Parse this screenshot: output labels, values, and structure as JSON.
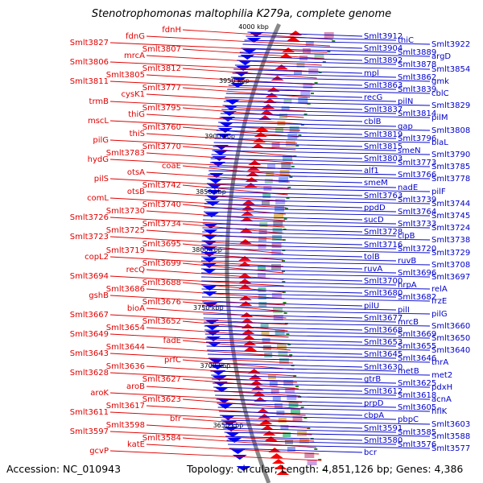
{
  "title": "Stenotrophomonas maltophilia K279a, complete genome",
  "footer": {
    "accession": "Accession: NC_010943",
    "summary": "Topology: circular; Length: 4,851,126 bp; Genes: 4,386"
  },
  "colors": {
    "left_label": "#e00000",
    "right_label": "#0000cc",
    "forward_strand": "#ff0000",
    "reverse_strand": "#0000ff",
    "backbone": "#888888",
    "tick": "#228B22"
  },
  "kbp_ticks": [
    "4000 kbp",
    "3950 kbp",
    "3900 kbp",
    "3850 kbp",
    "3800 kbp",
    "3750 kbp",
    "3700 kbp",
    "3650 kbp"
  ],
  "left_labels": [
    "fdnH",
    "fdnG",
    "Smlt3827",
    "Smlt3807",
    "mrcA",
    "Smlt3806",
    "Smlt3812",
    "Smlt3805",
    "Smlt3811",
    "Smlt3777",
    "cysK1",
    "trmB",
    "Smlt3795",
    "thiG",
    "mscL",
    "Smlt3760",
    "thiS",
    "pilG",
    "Smlt3770",
    "Smlt3783",
    "hydG",
    "coaE",
    "otsA",
    "pilS",
    "Smlt3742",
    "otsB",
    "comL",
    "Smlt3740",
    "Smlt3730",
    "Smlt3726",
    "Smlt3734",
    "Smlt3725",
    "Smlt3723",
    "Smlt3695",
    "Smlt3719",
    "copL2",
    "Smlt3699",
    "recQ",
    "Smlt3694",
    "Smlt3688",
    "Smlt3686",
    "gshB",
    "Smlt3676",
    "bioA",
    "Smlt3667",
    "Smlt3652",
    "Smlt3654",
    "Smlt3649",
    "fadE",
    "Smlt3644",
    "Smlt3643",
    "prfC",
    "Smlt3636",
    "Smlt3628",
    "Smlt3627",
    "aroB",
    "aroK",
    "Smlt3623",
    "Smlt3617",
    "Smlt3611",
    "bfr",
    "Smlt3598",
    "Smlt3597",
    "Smlt3584",
    "katE",
    "gcvP"
  ],
  "right_labels": [
    "Smlt3912",
    "thiC",
    "Smlt3922",
    "Smlt3904",
    "Smlt3889",
    "argD",
    "Smlt3892",
    "Smlt3878",
    "Smlt3854",
    "mpl",
    "Smlt3862",
    "gmk",
    "Smlt3863",
    "Smlt3839",
    "cblC",
    "recG",
    "pilN",
    "Smlt3829",
    "Smlt3837",
    "Smlt3814",
    "pilM",
    "cblB",
    "gap",
    "Smlt3808",
    "Smlt3819",
    "Smlt3796",
    "blaL",
    "Smlt3815",
    "smeN",
    "Smlt3790",
    "Smlt3803",
    "Smlt3773",
    "Smlt3785",
    "alf1",
    "Smlt3766",
    "Smlt3778",
    "smeM",
    "nadE",
    "pilF",
    "Smlt3763",
    "Smlt3739",
    "Smlt3744",
    "ppdD",
    "Smlt3764",
    "Smlt3745",
    "sucD",
    "Smlt3733",
    "Smlt3724",
    "Smlt3728",
    "clpB",
    "Smlt3738",
    "Smlt3716",
    "Smlt3720",
    "Smlt3729",
    "tolB",
    "ruvB",
    "Smlt3708",
    "ruvA",
    "Smlt3696",
    "Smlt3697",
    "Smlt3700",
    "hrpA",
    "relA",
    "Smlt3680",
    "Smlt3682",
    "frzE",
    "pilU",
    "pilI",
    "pilG",
    "Smlt3677",
    "mrcB",
    "Smlt3660",
    "Smlt3668",
    "Smlt3669",
    "Smlt3650",
    "Smlt3653",
    "Smlt3655",
    "Smlt3640",
    "Smlt3645",
    "Smlt3646",
    "thrA",
    "Smlt3630",
    "metB",
    "met2",
    "gtrB",
    "Smlt3625",
    "pdxH",
    "Smlt3612",
    "Smlt3618",
    "acnA",
    "prpD",
    "Smlt3605",
    "hflK",
    "cbpA",
    "pbpC",
    "Smlt3603",
    "Smlt3591",
    "Smlt3585",
    "Smlt3588",
    "Smlt3580",
    "Smlt3576",
    "Smlt3577",
    "bcr"
  ]
}
